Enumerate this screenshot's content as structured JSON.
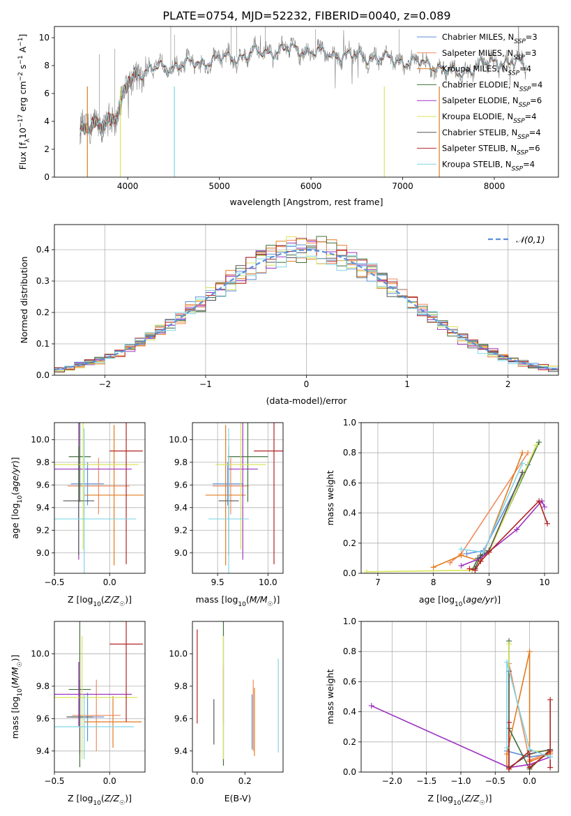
{
  "figure": {
    "title": "PLATE=0754, MJD=52232, FIBERID=0040, z=0.089"
  },
  "colors": {
    "c1": "#5b8fd9",
    "c2": "#f08a5d",
    "c3": "#e17b1f",
    "c4": "#3f6f3a",
    "c5": "#9b33c0",
    "c6": "#d9e35b",
    "c7": "#555555",
    "c8": "#b22222",
    "c9": "#7fd6e6",
    "data": "#808080",
    "normal": "#5b8fd9",
    "grid": "#b0b0b0"
  },
  "chart_data": [
    {
      "id": "spectrum",
      "type": "line",
      "xlabel": "wavelength [Angstrom, rest frame]",
      "ylabel": "Flux [fλ10⁻¹⁷ erg cm⁻² s⁻¹ A⁻¹]",
      "xlim": [
        3200,
        8700
      ],
      "ylim": [
        0,
        10.8
      ],
      "xticks": [
        4000,
        5000,
        6000,
        7000,
        8000
      ],
      "yticks": [
        0,
        2,
        4,
        6,
        8,
        10
      ],
      "grid": false,
      "legend_position": "top-right",
      "continuum": {
        "x": [
          3500,
          3700,
          3900,
          4000,
          4100,
          4300,
          4500,
          4700,
          5000,
          5200,
          5400,
          5600,
          5800,
          6000,
          6200,
          6400,
          6600,
          6800,
          7000,
          7200,
          7400,
          7600,
          7800,
          8000,
          8200,
          8350
        ],
        "y": [
          3.3,
          3.8,
          4.5,
          6.8,
          7.4,
          7.8,
          8.0,
          8.1,
          8.5,
          8.6,
          8.9,
          9.0,
          9.2,
          9.0,
          8.8,
          8.7,
          8.6,
          8.5,
          8.3,
          8.2,
          7.9,
          7.4,
          7.9,
          8.3,
          8.2,
          8.0
        ]
      },
      "series": [
        {
          "name": "Chabrier MILES, N_SSP=3",
          "label_main": "Chabrier MILES, N",
          "label_sub": "SSP",
          "label_tail": "=3",
          "color": "#5b8fd9"
        },
        {
          "name": "Salpeter MILES, N_SSP=3",
          "label_main": "Salpeter MILES, N",
          "label_sub": "SSP",
          "label_tail": "=3",
          "color": "#f08a5d"
        },
        {
          "name": "Kroupa MILES, N_SSP=4",
          "label_main": "Kroupa MILES, N",
          "label_sub": "SSP",
          "label_tail": "=4",
          "color": "#e17b1f"
        },
        {
          "name": "Chabrier ELODIE, N_SSP=4",
          "label_main": "Chabrier ELODIE, N",
          "label_sub": "SSP",
          "label_tail": "=4",
          "color": "#3f6f3a"
        },
        {
          "name": "Salpeter ELODIE, N_SSP=6",
          "label_main": "Salpeter ELODIE, N",
          "label_sub": "SSP",
          "label_tail": "=6",
          "color": "#9b33c0"
        },
        {
          "name": "Kroupa ELODIE, N_SSP=4",
          "label_main": "Kroupa ELODIE, N",
          "label_sub": "SSP",
          "label_tail": "=4",
          "color": "#d9e35b"
        },
        {
          "name": "Chabrier STELIB, N_SSP=4",
          "label_main": "Chabrier STELIB, N",
          "label_sub": "SSP",
          "label_tail": "=4",
          "color": "#555555"
        },
        {
          "name": "Salpeter STELIB, N_SSP=6",
          "label_main": "Salpeter STELIB, N",
          "label_sub": "SSP",
          "label_tail": "=6",
          "color": "#b22222"
        },
        {
          "name": "Kroupa STELIB, N_SSP=4",
          "label_main": "Kroupa STELIB, N",
          "label_sub": "SSP",
          "label_tail": "=4",
          "color": "#7fd6e6"
        }
      ]
    },
    {
      "id": "residuals",
      "type": "line",
      "xlabel": "(data-model)/error",
      "ylabel": "Normed distribution",
      "xlim": [
        -2.5,
        2.5
      ],
      "ylim": [
        0,
        0.48
      ],
      "xticks": [
        -2,
        -1,
        0,
        1,
        2
      ],
      "yticks": [
        0.0,
        0.1,
        0.2,
        0.3,
        0.4
      ],
      "grid": true,
      "legend": "𝒩(0,1)",
      "legend_position": "top-right",
      "bin_width": 0.1,
      "x_start": -2.5
    },
    {
      "id": "age-vs-Z",
      "type": "scatter",
      "xlabel": "Z [log10(Z/Z☉)]",
      "ylabel": "age  [log10(age/yr)]",
      "xlim": [
        -0.5,
        0.32
      ],
      "ylim": [
        8.82,
        10.15
      ],
      "xticks": [
        -0.5,
        0.0
      ],
      "yticks": [
        9.0,
        9.2,
        9.4,
        9.6,
        9.8,
        10.0
      ],
      "grid": true,
      "points": [
        {
          "x": -0.2,
          "xerr": 0.15,
          "y": 9.61,
          "yerr": 0.19,
          "c": "c1"
        },
        {
          "x": -0.1,
          "xerr": 0.28,
          "y": 9.59,
          "yerr": 0.25,
          "c": "c2"
        },
        {
          "x": 0.04,
          "xerr": 0.27,
          "y": 9.51,
          "yerr": 0.62,
          "c": "c3"
        },
        {
          "x": -0.27,
          "xerr": 0.1,
          "y": 9.85,
          "yerr": 0.4,
          "c": "c4"
        },
        {
          "x": -0.28,
          "xerr": 0.48,
          "y": 9.74,
          "yerr": 0.8,
          "c": "c5"
        },
        {
          "x": -0.24,
          "xerr": 0.5,
          "y": 9.78,
          "yerr": 0.75,
          "c": "c6"
        },
        {
          "x": -0.28,
          "xerr": 0.14,
          "y": 9.46,
          "yerr": 0.48,
          "c": "c7"
        },
        {
          "x": 0.15,
          "xerr": 0.15,
          "y": 9.9,
          "yerr": 1.0,
          "c": "c8"
        },
        {
          "x": -0.23,
          "xerr": 0.47,
          "y": 9.3,
          "yerr": 0.8,
          "c": "c9"
        }
      ]
    },
    {
      "id": "age-vs-mass",
      "type": "scatter",
      "xlabel": "mass [log10(M/M☉)]",
      "ylabel": "",
      "xlim": [
        9.25,
        10.15
      ],
      "ylim": [
        8.82,
        10.15
      ],
      "xticks": [
        9.5,
        10.0
      ],
      "yticks": [
        9.0,
        9.2,
        9.4,
        9.6,
        9.8,
        10.0
      ],
      "grid": true,
      "points": [
        {
          "x": 9.6,
          "xerr": 0.15,
          "y": 9.61,
          "yerr": 0.19,
          "c": "c1"
        },
        {
          "x": 9.63,
          "xerr": 0.18,
          "y": 9.59,
          "yerr": 0.25,
          "c": "c2"
        },
        {
          "x": 9.58,
          "xerr": 0.2,
          "y": 9.51,
          "yerr": 0.62,
          "c": "c3"
        },
        {
          "x": 9.8,
          "xerr": 0.2,
          "y": 9.85,
          "yerr": 0.4,
          "c": "c4"
        },
        {
          "x": 9.75,
          "xerr": 0.15,
          "y": 9.74,
          "yerr": 0.8,
          "c": "c5"
        },
        {
          "x": 9.73,
          "xerr": 0.25,
          "y": 9.78,
          "yerr": 0.75,
          "c": "c6"
        },
        {
          "x": 9.61,
          "xerr": 0.1,
          "y": 9.46,
          "yerr": 0.48,
          "c": "c7"
        },
        {
          "x": 10.06,
          "xerr": 0.2,
          "y": 9.9,
          "yerr": 1.0,
          "c": "c8"
        },
        {
          "x": 9.61,
          "xerr": 0.2,
          "y": 9.3,
          "yerr": 0.8,
          "c": "c9"
        }
      ]
    },
    {
      "id": "weight-vs-age",
      "type": "line",
      "xlabel": "age  [log10(age/yr)]",
      "ylabel": "mass weight",
      "xlim": [
        6.7,
        10.25
      ],
      "ylim": [
        0,
        1.0
      ],
      "xticks": [
        7,
        8,
        9,
        10
      ],
      "yticks": [
        0.0,
        0.2,
        0.4,
        0.6,
        0.8,
        1.0
      ],
      "grid": true,
      "series": [
        {
          "c": "c1",
          "x": [
            8.6,
            8.9,
            9.7
          ],
          "y": [
            0.13,
            0.15,
            0.72
          ]
        },
        {
          "c": "c2",
          "x": [
            8.3,
            8.5,
            9.7
          ],
          "y": [
            0.07,
            0.13,
            0.8
          ]
        },
        {
          "c": "c3",
          "x": [
            8.0,
            8.5,
            8.85,
            9.6
          ],
          "y": [
            0.04,
            0.12,
            0.08,
            0.8
          ]
        },
        {
          "c": "c4",
          "x": [
            8.7,
            8.8,
            9.0,
            9.9
          ],
          "y": [
            0.02,
            0.1,
            0.15,
            0.87
          ]
        },
        {
          "c": "c5",
          "x": [
            8.5,
            8.85,
            9.5,
            9.95,
            10.0
          ],
          "y": [
            0.05,
            0.1,
            0.29,
            0.48,
            0.44
          ]
        },
        {
          "c": "c6",
          "x": [
            6.8,
            8.7,
            9.0,
            9.85
          ],
          "y": [
            0.01,
            0.02,
            0.14,
            0.85
          ]
        },
        {
          "c": "c7",
          "x": [
            8.75,
            8.85,
            9.0,
            9.6
          ],
          "y": [
            0.03,
            0.12,
            0.15,
            0.67
          ]
        },
        {
          "c": "c8",
          "x": [
            8.65,
            8.75,
            8.85,
            9.0,
            9.9,
            10.05
          ],
          "y": [
            0.03,
            0.02,
            0.08,
            0.14,
            0.48,
            0.33
          ]
        },
        {
          "c": "c9",
          "x": [
            8.5,
            8.9,
            9.6
          ],
          "y": [
            0.16,
            0.14,
            0.73
          ]
        }
      ]
    },
    {
      "id": "mass-vs-Z",
      "type": "scatter",
      "xlabel": "Z [log10(Z/Z☉)]",
      "ylabel": "mass [log10(M/M☉)]",
      "xlim": [
        -0.5,
        0.32
      ],
      "ylim": [
        9.27,
        10.2
      ],
      "xticks": [
        -0.5,
        0.0
      ],
      "yticks": [
        9.4,
        9.6,
        9.8,
        10.0
      ],
      "grid": true,
      "points": [
        {
          "x": -0.2,
          "xerr": 0.15,
          "y": 9.61,
          "yerr": 0.15,
          "c": "c1"
        },
        {
          "x": -0.12,
          "xerr": 0.22,
          "y": 9.62,
          "yerr": 0.22,
          "c": "c2"
        },
        {
          "x": 0.03,
          "xerr": 0.26,
          "y": 9.58,
          "yerr": 0.16,
          "c": "c3"
        },
        {
          "x": -0.27,
          "xerr": 0.1,
          "y": 9.78,
          "yerr": 0.48,
          "c": "c4"
        },
        {
          "x": -0.28,
          "xerr": 0.48,
          "y": 9.75,
          "yerr": 0.2,
          "c": "c5"
        },
        {
          "x": -0.25,
          "xerr": 0.5,
          "y": 9.73,
          "yerr": 0.38,
          "c": "c6"
        },
        {
          "x": -0.27,
          "xerr": 0.12,
          "y": 9.61,
          "yerr": 0.23,
          "c": "c7"
        },
        {
          "x": 0.15,
          "xerr": 0.15,
          "y": 10.06,
          "yerr": 0.48,
          "c": "c8"
        },
        {
          "x": -0.23,
          "xerr": 0.45,
          "y": 9.55,
          "yerr": 0.2,
          "c": "c9"
        }
      ]
    },
    {
      "id": "mass-vs-EBV",
      "type": "scatter",
      "xlabel": "E(B-V)",
      "ylabel": "",
      "xlim": [
        -0.02,
        0.36
      ],
      "ylim": [
        9.27,
        10.2
      ],
      "xticks": [
        0.0,
        0.2
      ],
      "yticks": [
        9.4,
        9.6,
        9.8,
        10.0
      ],
      "grid": false,
      "points": [
        {
          "x": 0.23,
          "y": 9.58,
          "yerr": 0.17,
          "c": "c1"
        },
        {
          "x": 0.235,
          "y": 9.62,
          "yerr": 0.22,
          "c": "c2"
        },
        {
          "x": 0.24,
          "y": 9.58,
          "yerr": 0.21,
          "c": "c3"
        },
        {
          "x": 0.11,
          "y": 9.79,
          "yerr": 0.48,
          "c": "c4"
        },
        {
          "x": 0.11,
          "y": 9.75,
          "yerr": 0.18,
          "c": "c5"
        },
        {
          "x": 0.11,
          "y": 9.73,
          "yerr": 0.38,
          "c": "c6"
        },
        {
          "x": 0.07,
          "y": 9.58,
          "yerr": 0.14,
          "c": "c7"
        },
        {
          "x": 0.0,
          "y": 9.86,
          "yerr": 0.29,
          "c": "c8"
        },
        {
          "x": 0.34,
          "y": 9.68,
          "yerr": 0.29,
          "c": "c9"
        }
      ]
    },
    {
      "id": "weight-vs-Z",
      "type": "line",
      "xlabel": "Z [log10(Z/Z☉)]",
      "ylabel": "mass weight",
      "xlim": [
        -2.45,
        0.42
      ],
      "ylim": [
        0,
        1.0
      ],
      "xticks": [
        -2.0,
        -1.5,
        -1.0,
        -0.5,
        0.0
      ],
      "xtick_labels": [
        "−2.0",
        "−1.5",
        "−1.0",
        "−0.5",
        "0.0"
      ],
      "yticks": [
        0.0,
        0.2,
        0.4,
        0.6,
        0.8,
        1.0
      ],
      "grid": true,
      "series": [
        {
          "c": "c1",
          "x": [
            -0.33,
            0.0,
            0.3
          ],
          "y": [
            0.14,
            0.1,
            0.12
          ]
        },
        {
          "c": "c2",
          "x": [
            -0.3,
            0.0,
            0.3
          ],
          "y": [
            0.72,
            0.08,
            0.13
          ]
        },
        {
          "c": "c3",
          "x": [
            -0.33,
            -0.33,
            0.0,
            0.0,
            0.3
          ],
          "y": [
            0.04,
            0.12,
            0.8,
            0.07,
            0.12
          ]
        },
        {
          "c": "c4",
          "x": [
            -0.3,
            -0.3,
            0.0,
            0.3
          ],
          "y": [
            0.87,
            0.29,
            0.02,
            0.15
          ]
        },
        {
          "c": "c5",
          "x": [
            -2.3,
            -0.3,
            0.0,
            0.3
          ],
          "y": [
            0.44,
            0.03,
            0.05,
            0.1
          ]
        },
        {
          "c": "c6",
          "x": [
            -0.3,
            -0.3,
            0.0,
            0.3
          ],
          "y": [
            0.85,
            0.02,
            0.14,
            0.14
          ]
        },
        {
          "c": "c7",
          "x": [
            -0.3,
            -0.3,
            0.0,
            0.3
          ],
          "y": [
            0.67,
            0.03,
            0.12,
            0.15
          ]
        },
        {
          "c": "c8",
          "x": [
            -0.3,
            -0.3,
            0.0,
            0.0,
            0.3,
            0.3,
            0.3
          ],
          "y": [
            0.33,
            0.02,
            0.14,
            0.03,
            0.14,
            0.48,
            0.03
          ]
        },
        {
          "c": "c9",
          "x": [
            -0.33,
            -0.33,
            0.0,
            0.3
          ],
          "y": [
            0.16,
            0.73,
            0.15,
            0.1
          ]
        }
      ]
    }
  ]
}
